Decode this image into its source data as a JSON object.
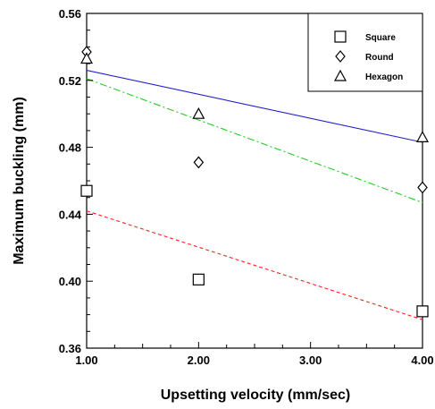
{
  "chart_data": {
    "type": "scatter",
    "xlabel": "Upsetting velocity (mm/sec)",
    "ylabel": "Maximum buckling (mm)",
    "xlim": [
      1.0,
      4.0
    ],
    "ylim": [
      0.36,
      0.56
    ],
    "x_ticks": [
      1.0,
      2.0,
      3.0,
      4.0
    ],
    "x_tick_labels": [
      "1.00",
      "2.00",
      "3.00",
      "4.00"
    ],
    "y_ticks": [
      0.36,
      0.4,
      0.44,
      0.48,
      0.52,
      0.56
    ],
    "y_tick_labels": [
      "0.36",
      "0.40",
      "0.44",
      "0.48",
      "0.52",
      "0.56"
    ],
    "grid": false,
    "legend_position": "top-right",
    "series": [
      {
        "name": "Square",
        "marker": "square",
        "points": [
          [
            1.0,
            0.454
          ],
          [
            2.0,
            0.401
          ],
          [
            4.0,
            0.382
          ]
        ],
        "trend": [
          [
            1.0,
            0.442
          ],
          [
            4.0,
            0.377
          ]
        ],
        "trend_color": "#ff2020",
        "trend_style": "dashed"
      },
      {
        "name": "Round",
        "marker": "diamond",
        "points": [
          [
            1.0,
            0.537
          ],
          [
            2.0,
            0.471
          ],
          [
            4.0,
            0.456
          ]
        ],
        "trend": [
          [
            1.0,
            0.521
          ],
          [
            4.0,
            0.447
          ]
        ],
        "trend_color": "#22cc22",
        "trend_style": "dashdot"
      },
      {
        "name": "Hexagon",
        "marker": "triangle",
        "points": [
          [
            1.0,
            0.533
          ],
          [
            2.0,
            0.5
          ],
          [
            4.0,
            0.486
          ]
        ],
        "trend": [
          [
            1.0,
            0.526
          ],
          [
            4.0,
            0.483
          ]
        ],
        "trend_color": "#2222cc",
        "trend_style": "solid"
      }
    ]
  }
}
